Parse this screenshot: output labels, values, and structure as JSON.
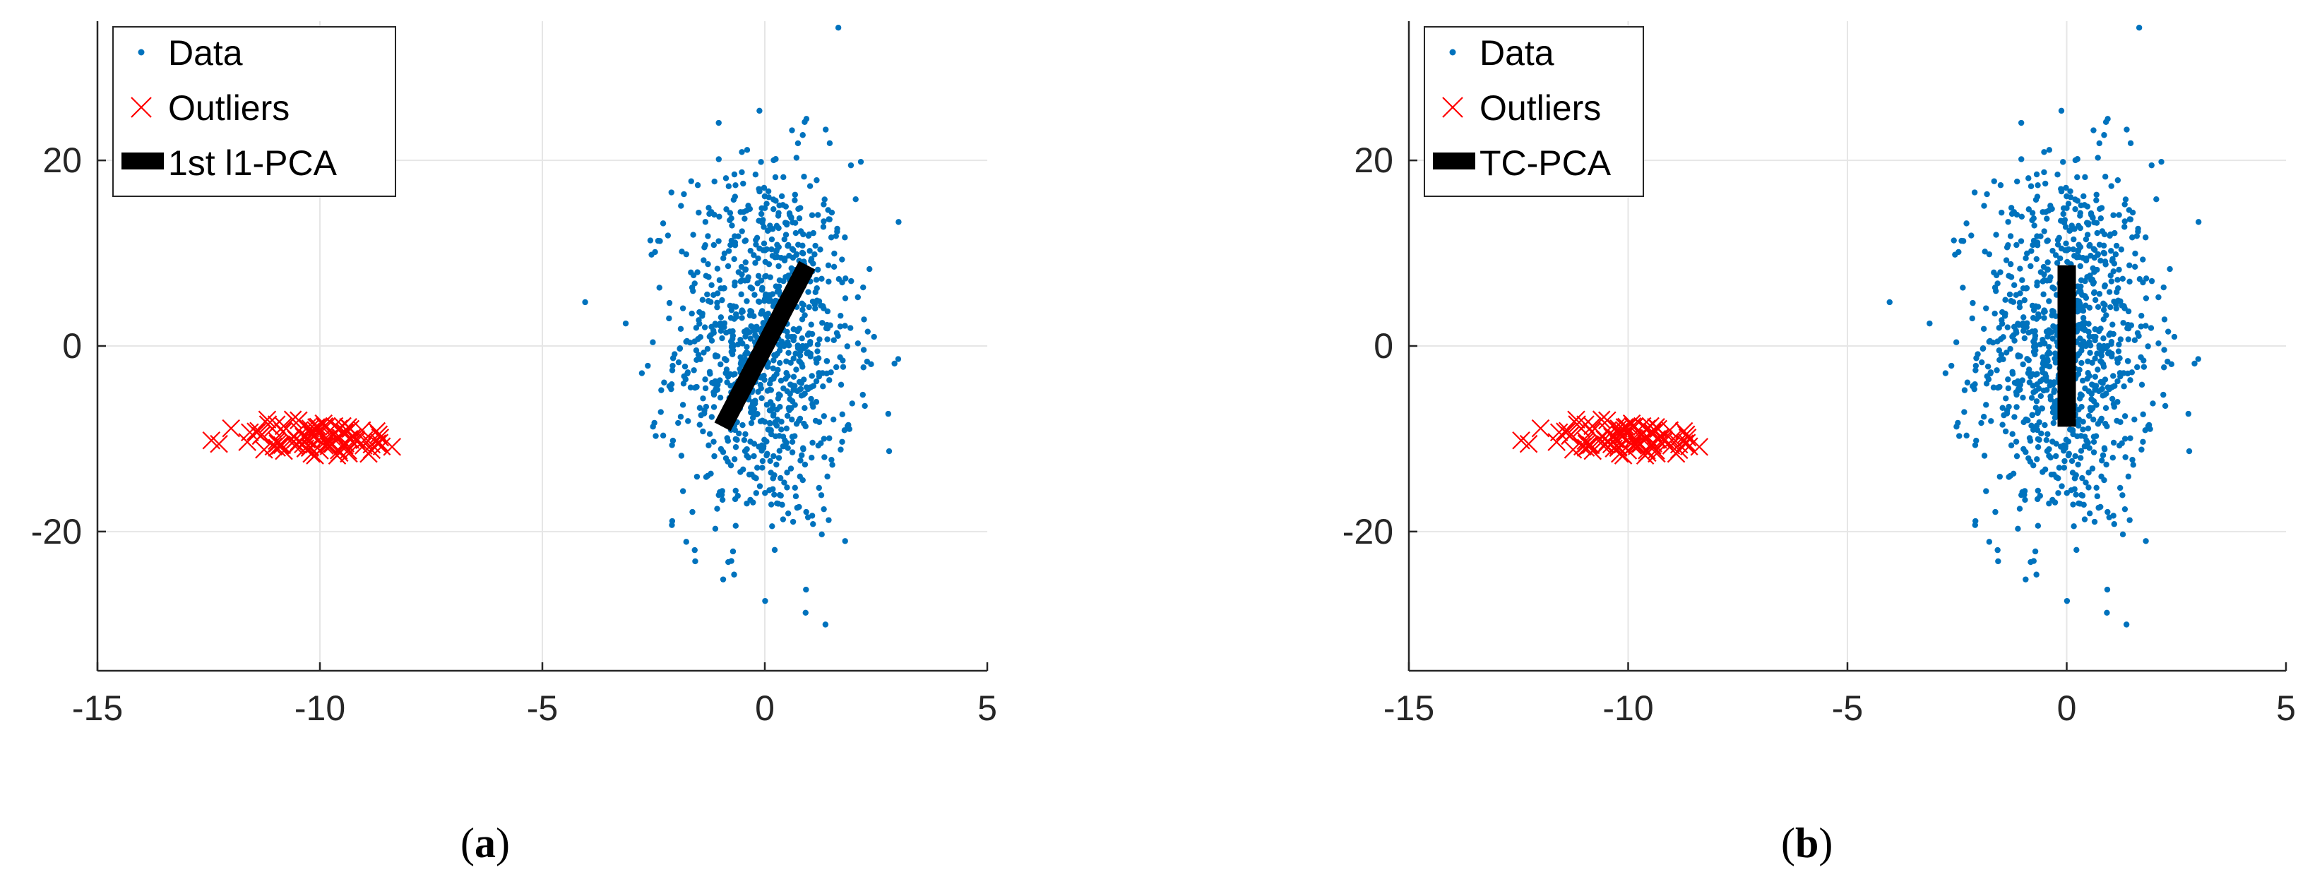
{
  "colors": {
    "data": "#0072BD",
    "outliers": "#FF0000",
    "component": "#000000",
    "grid": "#e6e6e6",
    "axis": "#262626"
  },
  "captions": [
    {
      "open": "(",
      "letter": "a",
      "close": ")"
    },
    {
      "open": "(",
      "letter": "b",
      "close": ")"
    }
  ],
  "chart_data": [
    {
      "type": "scatter",
      "panel": "a",
      "xlim": [
        -15,
        5
      ],
      "ylim": [
        -35,
        35
      ],
      "xticks": [
        -15,
        -10,
        -5,
        0,
        5
      ],
      "yticks": [
        -20,
        0,
        20
      ],
      "grid": true,
      "legend_position": "top-left",
      "legend": [
        "Data",
        "Outliers",
        "1st l1-PCA"
      ],
      "series": [
        {
          "name": "Data",
          "marker": "dot",
          "distribution": {
            "x_mean": 0,
            "x_std": 1,
            "y_mean": 0,
            "y_std": 10,
            "count": 1000
          }
        },
        {
          "name": "Outliers",
          "marker": "x",
          "distribution": {
            "x_mean": -10,
            "x_std": 1,
            "y_mean": -10,
            "y_std": 1,
            "count": 100
          }
        },
        {
          "name": "1st l1-PCA",
          "marker": "line",
          "x": [
            -0.95,
            0.95
          ],
          "y": [
            -8.7,
            8.7
          ]
        }
      ]
    },
    {
      "type": "scatter",
      "panel": "b",
      "xlim": [
        -15,
        5
      ],
      "ylim": [
        -35,
        35
      ],
      "xticks": [
        -15,
        -10,
        -5,
        0,
        5
      ],
      "yticks": [
        -20,
        0,
        20
      ],
      "grid": true,
      "legend_position": "top-left",
      "legend": [
        "Data",
        "Outliers",
        "TC-PCA"
      ],
      "series": [
        {
          "name": "Data",
          "marker": "dot",
          "distribution": {
            "x_mean": 0,
            "x_std": 1,
            "y_mean": 0,
            "y_std": 10,
            "count": 1000
          }
        },
        {
          "name": "Outliers",
          "marker": "x",
          "distribution": {
            "x_mean": -10,
            "x_std": 1,
            "y_mean": -10,
            "y_std": 1,
            "count": 100
          }
        },
        {
          "name": "TC-PCA",
          "marker": "line",
          "x": [
            0,
            0
          ],
          "y": [
            -8.7,
            8.7
          ]
        }
      ]
    }
  ]
}
